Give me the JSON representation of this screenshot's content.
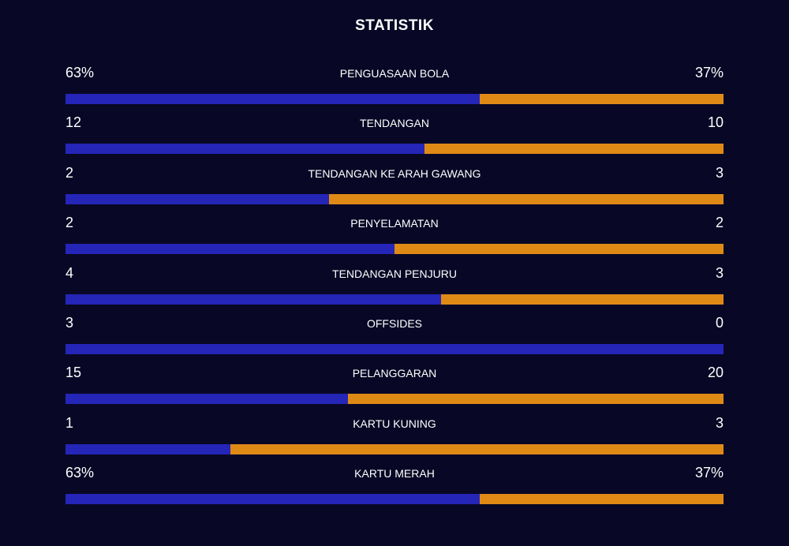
{
  "header": {
    "title": "STATISTIK"
  },
  "colors": {
    "home": "#2525b8",
    "away": "#e08a16",
    "background": "#080826"
  },
  "stats": [
    {
      "label": "PENGUASAAN BOLA",
      "home": "63%",
      "away": "37%",
      "home_share": 0.63
    },
    {
      "label": "TENDANGAN",
      "home": "12",
      "away": "10",
      "home_share": 0.545
    },
    {
      "label": "TENDANGAN KE ARAH GAWANG",
      "home": "2",
      "away": "3",
      "home_share": 0.4
    },
    {
      "label": "PENYELAMATAN",
      "home": "2",
      "away": "2",
      "home_share": 0.5
    },
    {
      "label": "TENDANGAN PENJURU",
      "home": "4",
      "away": "3",
      "home_share": 0.571
    },
    {
      "label": "OFFSIDES",
      "home": "3",
      "away": "0",
      "home_share": 1.0
    },
    {
      "label": "PELANGGARAN",
      "home": "15",
      "away": "20",
      "home_share": 0.429
    },
    {
      "label": "KARTU KUNING",
      "home": "1",
      "away": "3",
      "home_share": 0.25
    },
    {
      "label": "KARTU MERAH",
      "home": "63%",
      "away": "37%",
      "home_share": 0.63
    }
  ]
}
